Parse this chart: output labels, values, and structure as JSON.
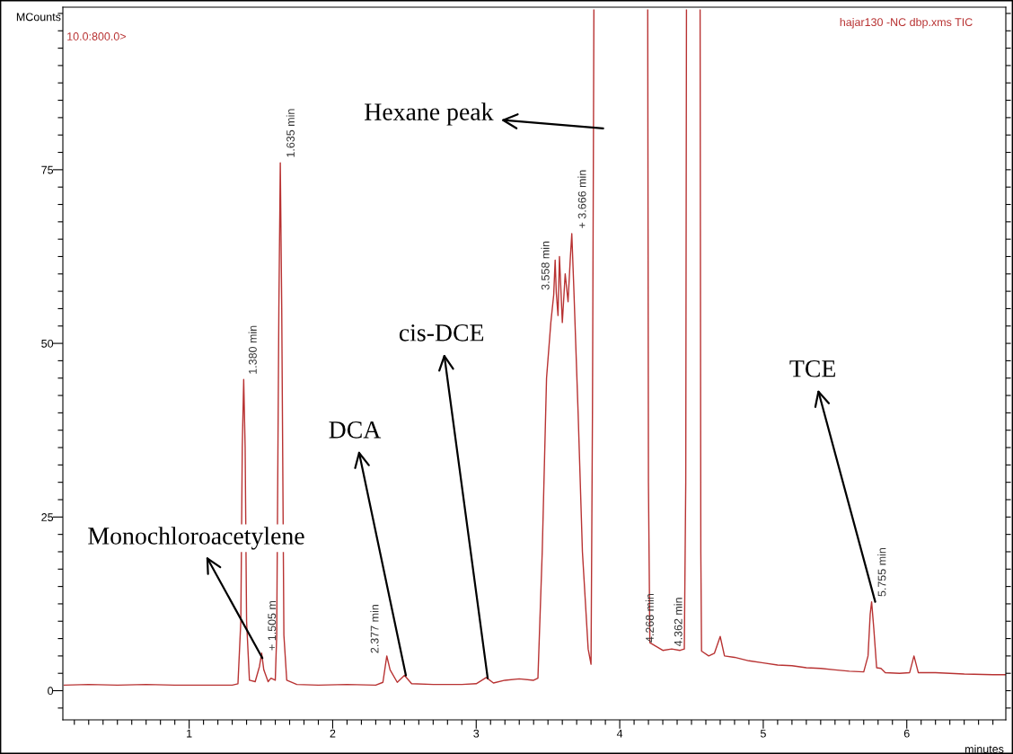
{
  "chart_data": {
    "type": "line",
    "xlabel": "minutes",
    "ylabel": "MCounts",
    "x": [
      0.13,
      0.3,
      0.5,
      0.7,
      0.9,
      1.1,
      1.3,
      1.34,
      1.36,
      1.37,
      1.38,
      1.39,
      1.4,
      1.42,
      1.46,
      1.49,
      1.505,
      1.52,
      1.55,
      1.57,
      1.6,
      1.61,
      1.625,
      1.635,
      1.645,
      1.66,
      1.68,
      1.75,
      1.9,
      2.1,
      2.3,
      2.35,
      2.377,
      2.4,
      2.45,
      2.5,
      2.55,
      2.7,
      2.9,
      3.0,
      3.07,
      3.12,
      3.2,
      3.3,
      3.4,
      3.43,
      3.46,
      3.49,
      3.52,
      3.54,
      3.55,
      3.558,
      3.57,
      3.58,
      3.6,
      3.62,
      3.64,
      3.655,
      3.666,
      3.68,
      3.71,
      3.74,
      3.78,
      3.8,
      3.81,
      3.82,
      4.0,
      4.195,
      4.2,
      4.21,
      4.268,
      4.3,
      4.362,
      4.42,
      4.45,
      4.46,
      4.465,
      4.51,
      4.56,
      4.565,
      4.57,
      4.62,
      4.66,
      4.7,
      4.73,
      4.8,
      4.9,
      5.0,
      5.1,
      5.2,
      5.3,
      5.4,
      5.5,
      5.6,
      5.7,
      5.73,
      5.745,
      5.755,
      5.77,
      5.79,
      5.82,
      5.85,
      5.95,
      6.02,
      6.05,
      6.08,
      6.2,
      6.4,
      6.6,
      6.69
    ],
    "series": [
      {
        "color": "#b83232",
        "values": [
          0.8,
          0.9,
          0.8,
          0.9,
          0.8,
          0.8,
          0.8,
          1.0,
          10,
          35,
          44.8,
          35,
          10,
          1.5,
          1.3,
          3.5,
          5.4,
          3.0,
          1.3,
          1.8,
          1.5,
          8,
          55,
          76,
          55,
          8,
          1.5,
          0.9,
          0.8,
          0.9,
          0.8,
          1.2,
          5.0,
          3.0,
          1.2,
          2.2,
          1.0,
          0.9,
          0.9,
          1.0,
          1.9,
          1.1,
          1.5,
          1.7,
          1.5,
          1.8,
          20,
          45,
          53,
          57,
          62,
          57.3,
          54,
          62.5,
          53,
          60,
          56,
          62,
          65.8,
          58,
          40,
          20,
          6,
          3.8,
          40,
          98,
          null,
          98,
          30,
          6.9,
          6.2,
          5.8,
          6.0,
          5.8,
          6.0,
          30,
          98,
          null,
          98,
          20,
          5.7,
          5.0,
          5.4,
          7.8,
          5.0,
          4.8,
          4.3,
          4.0,
          3.7,
          3.6,
          3.3,
          3.2,
          3.0,
          2.8,
          2.7,
          5,
          11,
          12.8,
          9,
          3.3,
          3.2,
          2.6,
          2.5,
          2.6,
          5.0,
          2.6,
          2.6,
          2.4,
          2.3,
          2.3
        ]
      }
    ],
    "xlim": [
      0.12,
      6.69
    ],
    "ylim": [
      -4.2,
      98.4
    ],
    "xticks": [
      {
        "value": 0.2,
        "label": null
      },
      {
        "value": 0.3,
        "label": null
      },
      {
        "value": 0.4,
        "label": null
      },
      {
        "value": 0.5,
        "label": null
      },
      {
        "value": 0.6,
        "label": null
      },
      {
        "value": 0.7,
        "label": null
      },
      {
        "value": 0.8,
        "label": null
      },
      {
        "value": 0.9,
        "label": null
      },
      1,
      {
        "value": 1.1,
        "label": null
      },
      {
        "value": 1.2,
        "label": null
      },
      {
        "value": 1.3,
        "label": null
      },
      {
        "value": 1.4,
        "label": null
      },
      {
        "value": 1.5,
        "label": null
      },
      {
        "value": 1.6,
        "label": null
      },
      {
        "value": 1.7,
        "label": null
      },
      {
        "value": 1.8,
        "label": null
      },
      {
        "value": 1.9,
        "label": null
      },
      2,
      {
        "value": 2.1,
        "label": null
      },
      {
        "value": 2.2,
        "label": null
      },
      {
        "value": 2.3,
        "label": null
      },
      {
        "value": 2.4,
        "label": null
      },
      {
        "value": 2.5,
        "label": null
      },
      {
        "value": 2.6,
        "label": null
      },
      {
        "value": 2.7,
        "label": null
      },
      {
        "value": 2.8,
        "label": null
      },
      {
        "value": 2.9,
        "label": null
      },
      3,
      {
        "value": 3.1,
        "label": null
      },
      {
        "value": 3.2,
        "label": null
      },
      {
        "value": 3.3,
        "label": null
      },
      {
        "value": 3.4,
        "label": null
      },
      {
        "value": 3.5,
        "label": null
      },
      {
        "value": 3.6,
        "label": null
      },
      {
        "value": 3.7,
        "label": null
      },
      {
        "value": 3.8,
        "label": null
      },
      {
        "value": 3.9,
        "label": null
      },
      4,
      {
        "value": 4.1,
        "label": null
      },
      {
        "value": 4.2,
        "label": null
      },
      {
        "value": 4.3,
        "label": null
      },
      {
        "value": 4.4,
        "label": null
      },
      {
        "value": 4.5,
        "label": null
      },
      {
        "value": 4.6,
        "label": null
      },
      {
        "value": 4.7,
        "label": null
      },
      {
        "value": 4.8,
        "label": null
      },
      {
        "value": 4.9,
        "label": null
      },
      5,
      {
        "value": 5.1,
        "label": null
      },
      {
        "value": 5.2,
        "label": null
      },
      {
        "value": 5.3,
        "label": null
      },
      {
        "value": 5.4,
        "label": null
      },
      {
        "value": 5.5,
        "label": null
      },
      {
        "value": 5.6,
        "label": null
      },
      {
        "value": 5.7,
        "label": null
      },
      {
        "value": 5.8,
        "label": null
      },
      {
        "value": 5.9,
        "label": null
      },
      6,
      {
        "value": 6.1,
        "label": null
      },
      {
        "value": 6.2,
        "label": null
      },
      {
        "value": 6.3,
        "label": null
      },
      {
        "value": 6.4,
        "label": null
      },
      {
        "value": 6.5,
        "label": null
      },
      {
        "value": 6.6,
        "label": null
      }
    ],
    "yticks": [
      {
        "value": -2.5,
        "label": null
      },
      0,
      {
        "value": 2.5,
        "label": null
      },
      {
        "value": 5,
        "label": null
      },
      {
        "value": 7.5,
        "label": null
      },
      {
        "value": 10,
        "label": null
      },
      {
        "value": 12.5,
        "label": null
      },
      {
        "value": 15,
        "label": null
      },
      {
        "value": 17.5,
        "label": null
      },
      {
        "value": 20,
        "label": null
      },
      {
        "value": 22.5,
        "label": null
      },
      25,
      {
        "value": 27.5,
        "label": null
      },
      {
        "value": 30,
        "label": null
      },
      {
        "value": 32.5,
        "label": null
      },
      {
        "value": 35,
        "label": null
      },
      {
        "value": 37.5,
        "label": null
      },
      {
        "value": 40,
        "label": null
      },
      {
        "value": 42.5,
        "label": null
      },
      {
        "value": 45,
        "label": null
      },
      {
        "value": 47.5,
        "label": null
      },
      50,
      {
        "value": 52.5,
        "label": null
      },
      {
        "value": 55,
        "label": null
      },
      {
        "value": 57.5,
        "label": null
      },
      {
        "value": 60,
        "label": null
      },
      {
        "value": 62.5,
        "label": null
      },
      {
        "value": 65,
        "label": null
      },
      {
        "value": 67.5,
        "label": null
      },
      {
        "value": 70,
        "label": null
      },
      {
        "value": 72.5,
        "label": null
      },
      75,
      {
        "value": 77.5,
        "label": null
      },
      {
        "value": 80,
        "label": null
      },
      {
        "value": 82.5,
        "label": null
      },
      {
        "value": 85,
        "label": null
      },
      {
        "value": 87.5,
        "label": null
      },
      {
        "value": 90,
        "label": null
      },
      {
        "value": 92.5,
        "label": null
      },
      {
        "value": 95,
        "label": null
      },
      {
        "value": 97.5,
        "label": null
      }
    ],
    "grid": false,
    "marker": "none",
    "line_style": "solid",
    "annotations": [
      "10.0:800.0>",
      "hajar130 -NC dbp.xms TIC",
      {
        "text": "1.380 min",
        "x": 1.38,
        "y": 44.8
      },
      {
        "text": "+ 1.505 m",
        "x": 1.505,
        "y": 5.4
      },
      {
        "text": "1.635 min",
        "x": 1.635,
        "y": 76
      },
      {
        "text": "2.377 min",
        "x": 2.377,
        "y": 5.0
      },
      {
        "text": "3.558 min",
        "x": 3.558,
        "y": 57.3
      },
      {
        "text": "+ 3.666 min",
        "x": 3.666,
        "y": 65.8
      },
      {
        "text": "4.268 min",
        "x": 4.268,
        "y": 6.2
      },
      {
        "text": "4.362 min",
        "x": 4.362,
        "y": 6.0
      },
      {
        "text": "5.755 min",
        "x": 5.755,
        "y": 12.8
      },
      "Hexane peak",
      {
        "text": "Monochloroacetylene",
        "x": 1.51,
        "y": 4.7
      },
      {
        "text": "DCA",
        "x": 2.51,
        "y": 2.2
      },
      {
        "text": "cis-DCE",
        "x": 3.08,
        "y": 1.8
      },
      {
        "text": "TCE",
        "x": 5.78,
        "y": 12.8
      }
    ]
  }
}
